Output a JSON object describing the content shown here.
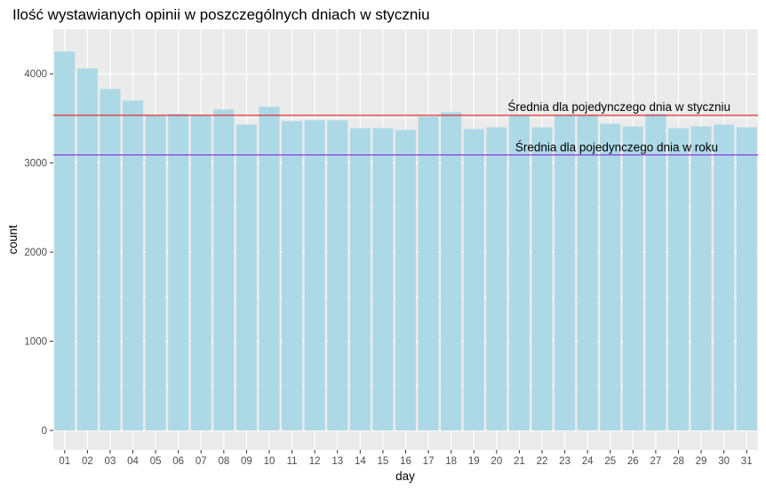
{
  "chart_data": {
    "type": "bar",
    "title": "Ilość wystawianych opinii w poszczególnych dniach w styczniu",
    "xlabel": "day",
    "ylabel": "count",
    "ylim": [
      0,
      4300
    ],
    "yticks": [
      0,
      1000,
      2000,
      3000,
      4000
    ],
    "grid": true,
    "categories": [
      "01",
      "02",
      "03",
      "04",
      "05",
      "06",
      "07",
      "08",
      "09",
      "10",
      "11",
      "12",
      "13",
      "14",
      "15",
      "16",
      "17",
      "18",
      "19",
      "20",
      "21",
      "22",
      "23",
      "24",
      "25",
      "26",
      "27",
      "28",
      "29",
      "30",
      "31"
    ],
    "values": [
      4250,
      4060,
      3830,
      3700,
      3530,
      3550,
      3540,
      3600,
      3430,
      3630,
      3470,
      3480,
      3480,
      3390,
      3390,
      3370,
      3520,
      3570,
      3380,
      3400,
      3530,
      3400,
      3540,
      3540,
      3440,
      3410,
      3550,
      3390,
      3410,
      3430,
      3400
    ],
    "reference_lines": [
      {
        "label": "Średnia dla pojedynczego dnia w styczniu",
        "value": 3535,
        "color": "#e41a1c"
      },
      {
        "label": "Średnia dla pojedynczego dnia w roku",
        "value": 3090,
        "color": "#8a2be2"
      }
    ],
    "colors": {
      "bar": "#add8e6",
      "panel_background": "#ebebeb",
      "grid": "#ffffff"
    }
  }
}
